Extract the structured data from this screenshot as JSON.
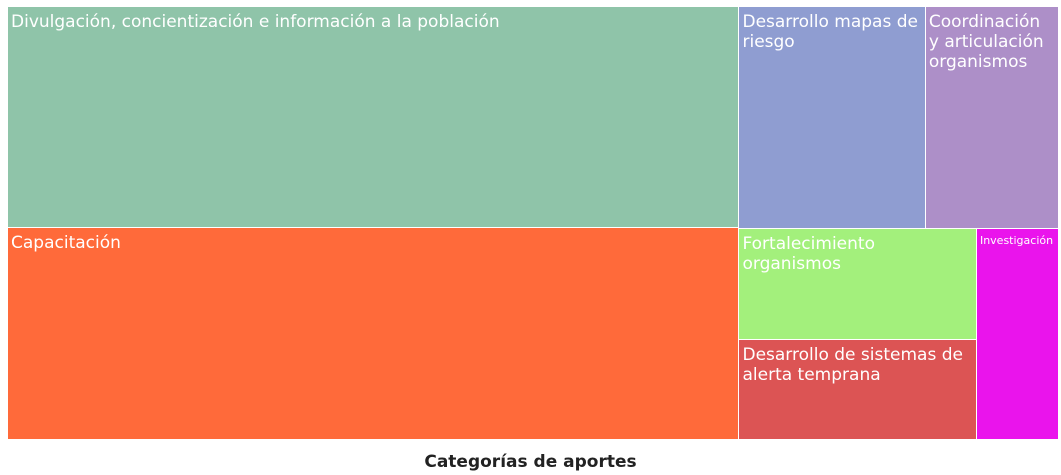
{
  "chart_data": {
    "type": "treemap",
    "title": "Categorías de aportes",
    "categories": [
      "Divulgación, concientización e información a la población",
      "Capacitación",
      "Desarrollo mapas de riesgo",
      "Coordinación y articulación organismos",
      "Fortalecimiento organismos",
      "Desarrollo de sistemas de alerta temprana",
      "Investigación"
    ],
    "values": [
      35.6,
      34.0,
      9.1,
      6.5,
      5.8,
      5.2,
      3.8
    ],
    "colors": [
      "#8fc4a9",
      "#ff6a3a",
      "#8f9dd1",
      "#ad8fc8",
      "#a3f07c",
      "#dc5454",
      "#ea14ec"
    ]
  }
}
